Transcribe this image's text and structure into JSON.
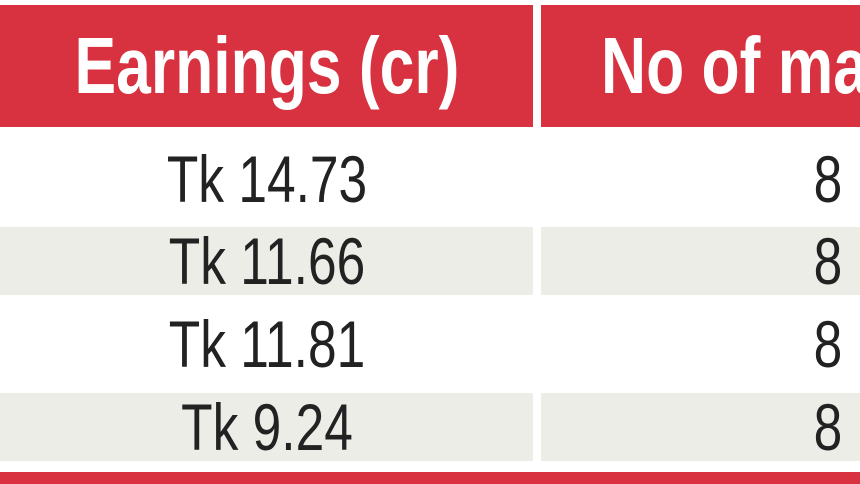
{
  "table": {
    "header": [
      "Earnings (cr)",
      "No of ma"
    ],
    "rows": [
      [
        "Tk 14.73",
        "8"
      ],
      [
        "Tk 11.66",
        "8"
      ],
      [
        "Tk 11.81",
        "8"
      ],
      [
        "Tk 9.24",
        "8"
      ]
    ]
  }
}
